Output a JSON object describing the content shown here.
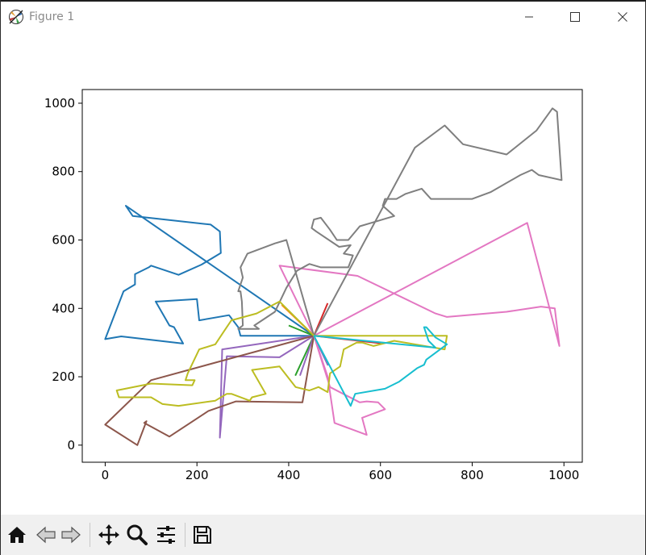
{
  "window": {
    "title": "Figure 1",
    "minimize_icon": "minimize-icon",
    "maximize_icon": "maximize-icon",
    "close_icon": "close-icon"
  },
  "toolbar": {
    "buttons": [
      {
        "name": "home-icon"
      },
      {
        "name": "back-arrow-icon"
      },
      {
        "name": "forward-arrow-icon"
      },
      {
        "name": "pan-icon"
      },
      {
        "name": "zoom-icon"
      },
      {
        "name": "configure-subplots-icon"
      },
      {
        "name": "save-icon"
      }
    ]
  },
  "chart_data": {
    "type": "line",
    "title": "",
    "xlabel": "",
    "ylabel": "",
    "xlim": [
      -50,
      1040
    ],
    "ylim": [
      -50,
      1040
    ],
    "xticks": [
      0,
      200,
      400,
      600,
      800,
      1000
    ],
    "yticks": [
      0,
      200,
      400,
      600,
      800,
      1000
    ],
    "tick_labels_x": [
      "0",
      "200",
      "400",
      "600",
      "800",
      "1000"
    ],
    "tick_labels_y": [
      "0",
      "200",
      "400",
      "600",
      "800",
      "1000"
    ],
    "grid": false,
    "legend": "none",
    "series": [
      {
        "color": "#1f77b4",
        "x": [
          455,
          45,
          60,
          230,
          250,
          252,
          210,
          160,
          100,
          95,
          65,
          65,
          40,
          0,
          35,
          170,
          150,
          140,
          110,
          115,
          200,
          205,
          270,
          290,
          295,
          330,
          455
        ],
        "y": [
          320,
          700,
          670,
          645,
          625,
          562,
          528,
          498,
          525,
          520,
          500,
          470,
          450,
          310,
          318,
          297,
          345,
          350,
          420,
          420,
          427,
          365,
          380,
          345,
          320,
          320,
          320
        ]
      },
      {
        "color": "#ff7f0e",
        "x": [
          455,
          385
        ],
        "y": [
          320,
          410
        ]
      },
      {
        "color": "#2ca02c",
        "x": [
          455,
          415,
          455,
          400
        ],
        "y": [
          320,
          205,
          320,
          350
        ]
      },
      {
        "color": "#d62728",
        "x": [
          455,
          600,
          455,
          485
        ],
        "y": [
          320,
          298,
          320,
          415
        ]
      },
      {
        "color": "#9467bd",
        "x": [
          455,
          485,
          455,
          425,
          455,
          380,
          265,
          250,
          255,
          455
        ],
        "y": [
          320,
          235,
          320,
          205,
          320,
          257,
          260,
          22,
          280,
          320
        ]
      },
      {
        "color": "#8c564b",
        "x": [
          455,
          100,
          0,
          70,
          90,
          85,
          140,
          225,
          285,
          430,
          455
        ],
        "y": [
          320,
          190,
          60,
          0,
          70,
          65,
          25,
          100,
          128,
          125,
          320
        ]
      },
      {
        "color": "#e377c2",
        "x": [
          455,
          380,
          550,
          720,
          745,
          875,
          950,
          980,
          990,
          920,
          455,
          485,
          500,
          570,
          560,
          610,
          595,
          570,
          555,
          490,
          455
        ],
        "y": [
          320,
          525,
          495,
          385,
          375,
          390,
          405,
          400,
          290,
          650,
          320,
          200,
          65,
          30,
          80,
          105,
          125,
          128,
          125,
          170,
          320
        ]
      },
      {
        "color": "#7f7f7f",
        "x": [
          455,
          675,
          740,
          780,
          875,
          940,
          975,
          985,
          995,
          945,
          930,
          905,
          840,
          800,
          710,
          690,
          655,
          635,
          610,
          605,
          630,
          580,
          555,
          530,
          505,
          490,
          470,
          455,
          450,
          460,
          510,
          535,
          520,
          540,
          530,
          490,
          470,
          445,
          418,
          395,
          370,
          325,
          335,
          290,
          300,
          298,
          295,
          290,
          300,
          295,
          310,
          370,
          395,
          455
        ],
        "y": [
          320,
          870,
          935,
          880,
          850,
          920,
          985,
          975,
          775,
          790,
          805,
          790,
          740,
          720,
          720,
          750,
          735,
          720,
          720,
          700,
          670,
          650,
          640,
          600,
          600,
          630,
          665,
          660,
          635,
          625,
          580,
          585,
          560,
          555,
          520,
          520,
          520,
          530,
          510,
          460,
          390,
          350,
          340,
          340,
          350,
          420,
          450,
          450,
          490,
          520,
          560,
          590,
          600,
          320
        ]
      },
      {
        "color": "#bcbd22",
        "x": [
          455,
          745,
          740,
          630,
          585,
          560,
          548,
          520,
          512,
          490,
          485,
          465,
          445,
          415,
          380,
          320,
          350,
          320,
          315,
          275,
          265,
          240,
          160,
          125,
          100,
          30,
          25,
          100,
          190,
          195,
          175,
          180,
          205,
          240,
          260,
          275,
          330,
          380,
          455
        ],
        "y": [
          320,
          320,
          280,
          305,
          290,
          300,
          300,
          280,
          230,
          210,
          155,
          170,
          160,
          170,
          230,
          220,
          150,
          140,
          130,
          150,
          150,
          130,
          115,
          120,
          140,
          140,
          160,
          180,
          175,
          190,
          190,
          210,
          280,
          295,
          335,
          365,
          385,
          420,
          320
        ]
      },
      {
        "color": "#17becf",
        "x": [
          455,
          720,
          705,
          695,
          700,
          720,
          745,
          700,
          695,
          680,
          665,
          640,
          610,
          545,
          535,
          455
        ],
        "y": [
          320,
          285,
          305,
          345,
          345,
          315,
          295,
          250,
          235,
          225,
          210,
          185,
          165,
          150,
          115,
          320
        ]
      }
    ]
  }
}
